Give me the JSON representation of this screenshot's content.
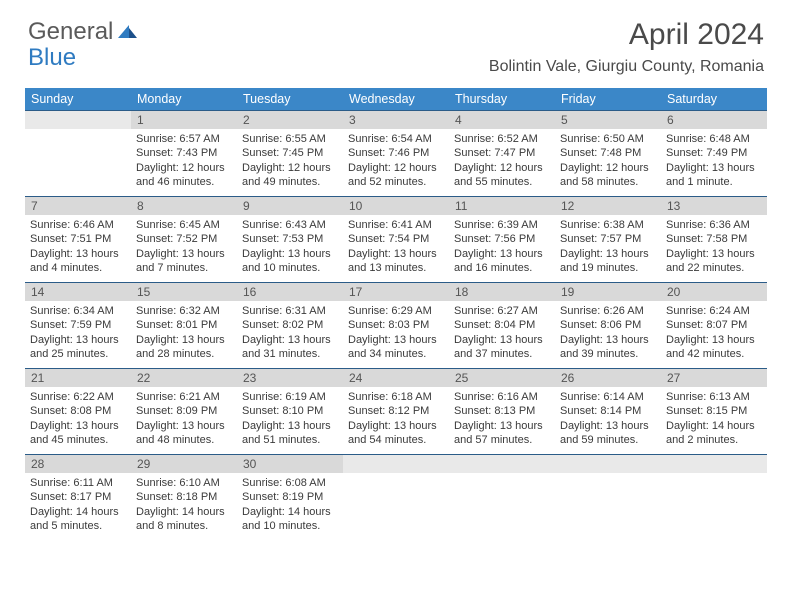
{
  "logo": {
    "text1": "General",
    "text2": "Blue"
  },
  "title": "April 2024",
  "location": "Bolintin Vale, Giurgiu County, Romania",
  "colors": {
    "header_bg": "#3b87c8",
    "header_text": "#ffffff",
    "row_border": "#2b5c88",
    "daynum_bg": "#d9d9d9",
    "logo_gray": "#5a5a5a",
    "logo_blue": "#2f7bc1"
  },
  "dayNames": [
    "Sunday",
    "Monday",
    "Tuesday",
    "Wednesday",
    "Thursday",
    "Friday",
    "Saturday"
  ],
  "weeks": [
    [
      {
        "day": "",
        "l1": "",
        "l2": "",
        "l3": "",
        "l4": ""
      },
      {
        "day": "1",
        "l1": "Sunrise: 6:57 AM",
        "l2": "Sunset: 7:43 PM",
        "l3": "Daylight: 12 hours",
        "l4": "and 46 minutes."
      },
      {
        "day": "2",
        "l1": "Sunrise: 6:55 AM",
        "l2": "Sunset: 7:45 PM",
        "l3": "Daylight: 12 hours",
        "l4": "and 49 minutes."
      },
      {
        "day": "3",
        "l1": "Sunrise: 6:54 AM",
        "l2": "Sunset: 7:46 PM",
        "l3": "Daylight: 12 hours",
        "l4": "and 52 minutes."
      },
      {
        "day": "4",
        "l1": "Sunrise: 6:52 AM",
        "l2": "Sunset: 7:47 PM",
        "l3": "Daylight: 12 hours",
        "l4": "and 55 minutes."
      },
      {
        "day": "5",
        "l1": "Sunrise: 6:50 AM",
        "l2": "Sunset: 7:48 PM",
        "l3": "Daylight: 12 hours",
        "l4": "and 58 minutes."
      },
      {
        "day": "6",
        "l1": "Sunrise: 6:48 AM",
        "l2": "Sunset: 7:49 PM",
        "l3": "Daylight: 13 hours",
        "l4": "and 1 minute."
      }
    ],
    [
      {
        "day": "7",
        "l1": "Sunrise: 6:46 AM",
        "l2": "Sunset: 7:51 PM",
        "l3": "Daylight: 13 hours",
        "l4": "and 4 minutes."
      },
      {
        "day": "8",
        "l1": "Sunrise: 6:45 AM",
        "l2": "Sunset: 7:52 PM",
        "l3": "Daylight: 13 hours",
        "l4": "and 7 minutes."
      },
      {
        "day": "9",
        "l1": "Sunrise: 6:43 AM",
        "l2": "Sunset: 7:53 PM",
        "l3": "Daylight: 13 hours",
        "l4": "and 10 minutes."
      },
      {
        "day": "10",
        "l1": "Sunrise: 6:41 AM",
        "l2": "Sunset: 7:54 PM",
        "l3": "Daylight: 13 hours",
        "l4": "and 13 minutes."
      },
      {
        "day": "11",
        "l1": "Sunrise: 6:39 AM",
        "l2": "Sunset: 7:56 PM",
        "l3": "Daylight: 13 hours",
        "l4": "and 16 minutes."
      },
      {
        "day": "12",
        "l1": "Sunrise: 6:38 AM",
        "l2": "Sunset: 7:57 PM",
        "l3": "Daylight: 13 hours",
        "l4": "and 19 minutes."
      },
      {
        "day": "13",
        "l1": "Sunrise: 6:36 AM",
        "l2": "Sunset: 7:58 PM",
        "l3": "Daylight: 13 hours",
        "l4": "and 22 minutes."
      }
    ],
    [
      {
        "day": "14",
        "l1": "Sunrise: 6:34 AM",
        "l2": "Sunset: 7:59 PM",
        "l3": "Daylight: 13 hours",
        "l4": "and 25 minutes."
      },
      {
        "day": "15",
        "l1": "Sunrise: 6:32 AM",
        "l2": "Sunset: 8:01 PM",
        "l3": "Daylight: 13 hours",
        "l4": "and 28 minutes."
      },
      {
        "day": "16",
        "l1": "Sunrise: 6:31 AM",
        "l2": "Sunset: 8:02 PM",
        "l3": "Daylight: 13 hours",
        "l4": "and 31 minutes."
      },
      {
        "day": "17",
        "l1": "Sunrise: 6:29 AM",
        "l2": "Sunset: 8:03 PM",
        "l3": "Daylight: 13 hours",
        "l4": "and 34 minutes."
      },
      {
        "day": "18",
        "l1": "Sunrise: 6:27 AM",
        "l2": "Sunset: 8:04 PM",
        "l3": "Daylight: 13 hours",
        "l4": "and 37 minutes."
      },
      {
        "day": "19",
        "l1": "Sunrise: 6:26 AM",
        "l2": "Sunset: 8:06 PM",
        "l3": "Daylight: 13 hours",
        "l4": "and 39 minutes."
      },
      {
        "day": "20",
        "l1": "Sunrise: 6:24 AM",
        "l2": "Sunset: 8:07 PM",
        "l3": "Daylight: 13 hours",
        "l4": "and 42 minutes."
      }
    ],
    [
      {
        "day": "21",
        "l1": "Sunrise: 6:22 AM",
        "l2": "Sunset: 8:08 PM",
        "l3": "Daylight: 13 hours",
        "l4": "and 45 minutes."
      },
      {
        "day": "22",
        "l1": "Sunrise: 6:21 AM",
        "l2": "Sunset: 8:09 PM",
        "l3": "Daylight: 13 hours",
        "l4": "and 48 minutes."
      },
      {
        "day": "23",
        "l1": "Sunrise: 6:19 AM",
        "l2": "Sunset: 8:10 PM",
        "l3": "Daylight: 13 hours",
        "l4": "and 51 minutes."
      },
      {
        "day": "24",
        "l1": "Sunrise: 6:18 AM",
        "l2": "Sunset: 8:12 PM",
        "l3": "Daylight: 13 hours",
        "l4": "and 54 minutes."
      },
      {
        "day": "25",
        "l1": "Sunrise: 6:16 AM",
        "l2": "Sunset: 8:13 PM",
        "l3": "Daylight: 13 hours",
        "l4": "and 57 minutes."
      },
      {
        "day": "26",
        "l1": "Sunrise: 6:14 AM",
        "l2": "Sunset: 8:14 PM",
        "l3": "Daylight: 13 hours",
        "l4": "and 59 minutes."
      },
      {
        "day": "27",
        "l1": "Sunrise: 6:13 AM",
        "l2": "Sunset: 8:15 PM",
        "l3": "Daylight: 14 hours",
        "l4": "and 2 minutes."
      }
    ],
    [
      {
        "day": "28",
        "l1": "Sunrise: 6:11 AM",
        "l2": "Sunset: 8:17 PM",
        "l3": "Daylight: 14 hours",
        "l4": "and 5 minutes."
      },
      {
        "day": "29",
        "l1": "Sunrise: 6:10 AM",
        "l2": "Sunset: 8:18 PM",
        "l3": "Daylight: 14 hours",
        "l4": "and 8 minutes."
      },
      {
        "day": "30",
        "l1": "Sunrise: 6:08 AM",
        "l2": "Sunset: 8:19 PM",
        "l3": "Daylight: 14 hours",
        "l4": "and 10 minutes."
      },
      {
        "day": "",
        "l1": "",
        "l2": "",
        "l3": "",
        "l4": ""
      },
      {
        "day": "",
        "l1": "",
        "l2": "",
        "l3": "",
        "l4": ""
      },
      {
        "day": "",
        "l1": "",
        "l2": "",
        "l3": "",
        "l4": ""
      },
      {
        "day": "",
        "l1": "",
        "l2": "",
        "l3": "",
        "l4": ""
      }
    ]
  ]
}
